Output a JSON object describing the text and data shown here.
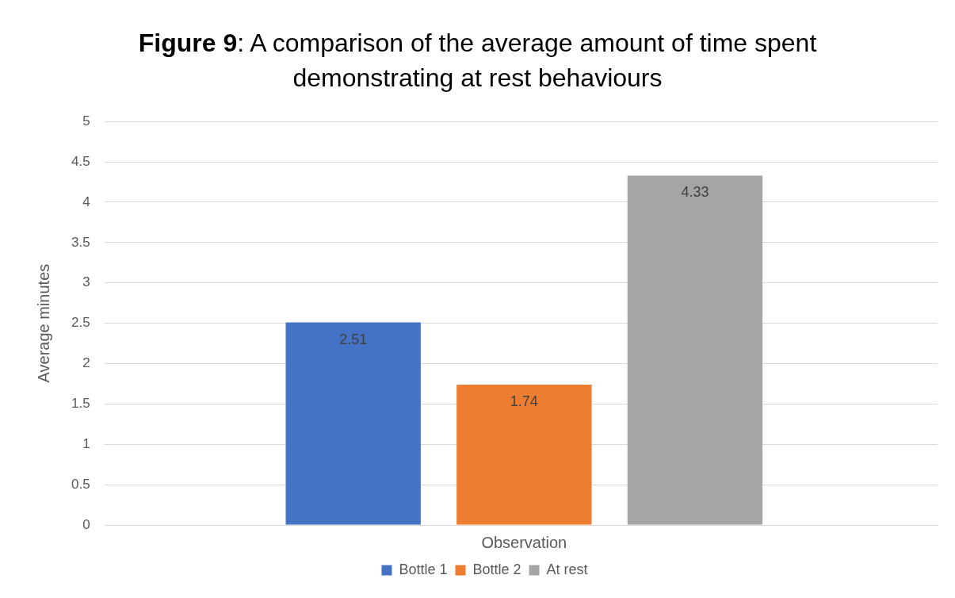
{
  "chart_data": {
    "type": "bar",
    "title": "Figure 9: A comparison of the average amount of time spent demonstrating at rest behaviours",
    "ylabel": "Average minutes",
    "categories": [
      "Observation"
    ],
    "series": [
      {
        "name": "Bottle 1",
        "color": "#4472c4",
        "values": [
          2.51
        ]
      },
      {
        "name": "Bottle 2",
        "color": "#ed7d31",
        "values": [
          1.74
        ]
      },
      {
        "name": "At rest",
        "color": "#a5a5a5",
        "values": [
          4.33
        ]
      }
    ],
    "ylim": [
      0,
      5
    ],
    "yticks": [
      0,
      0.5,
      1,
      1.5,
      2,
      2.5,
      3,
      3.5,
      4,
      4.5,
      5
    ],
    "grid": "y",
    "legend": "bottom",
    "data_labels": true
  }
}
